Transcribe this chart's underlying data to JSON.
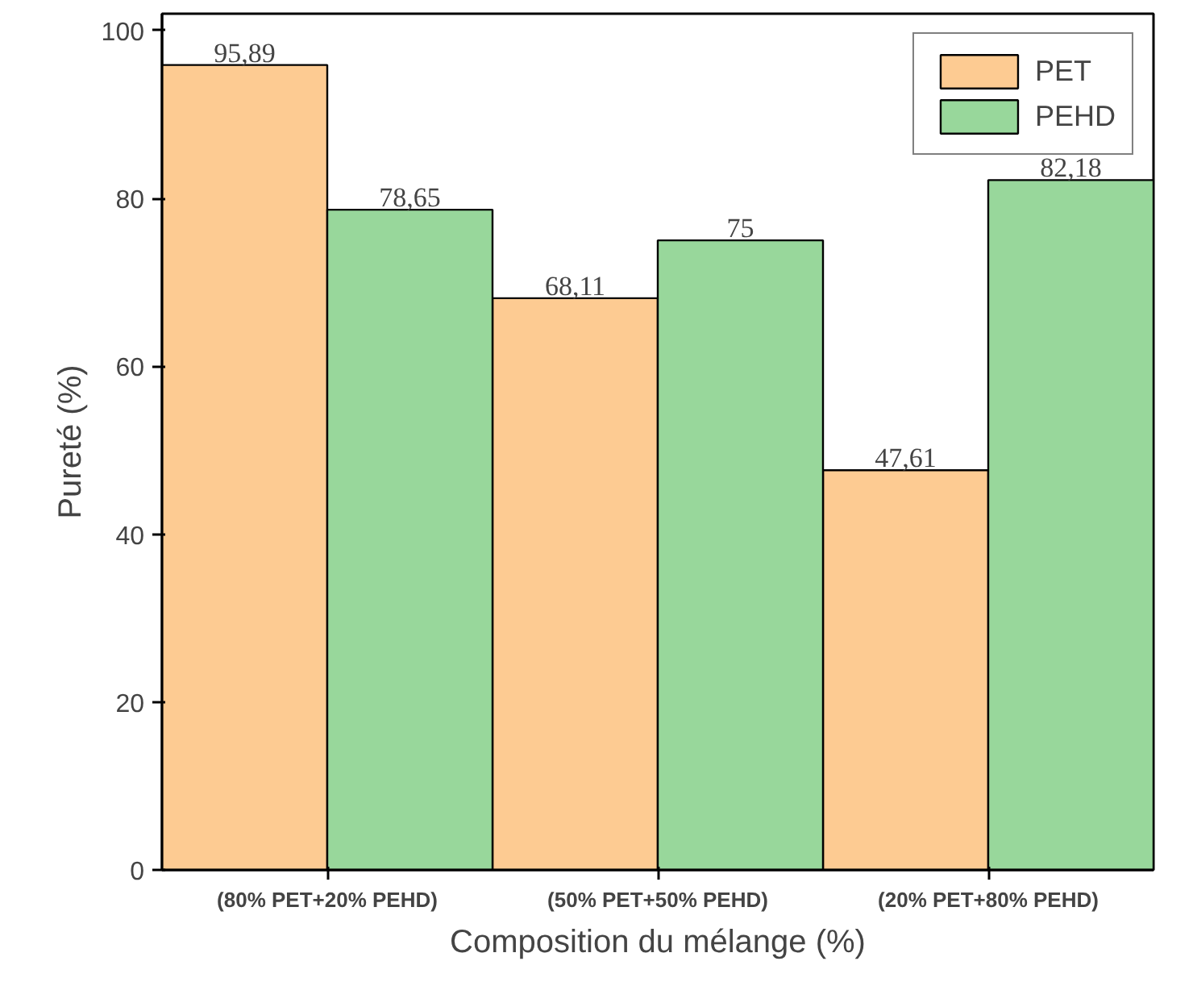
{
  "chart_data": {
    "type": "bar",
    "xlabel": "Composition du mélange (%)",
    "ylabel": "Pureté (%)",
    "categories": [
      "(80% PET+20% PEHD)",
      "(50% PET+50% PEHD)",
      "(20% PET+80% PEHD)"
    ],
    "series": [
      {
        "name": "PET",
        "color": "#fdcb92",
        "values": [
          95.89,
          68.11,
          47.61
        ],
        "value_labels": [
          "95,89",
          "68,11",
          "47,61"
        ]
      },
      {
        "name": "PEHD",
        "color": "#98d79b",
        "values": [
          78.65,
          75,
          82.18
        ],
        "value_labels": [
          "78,65",
          "75",
          "82,18"
        ]
      }
    ],
    "ylim": [
      0,
      102
    ],
    "yticks": [
      0,
      20,
      40,
      60,
      80,
      100
    ],
    "grid": false,
    "legend": "top right"
  }
}
